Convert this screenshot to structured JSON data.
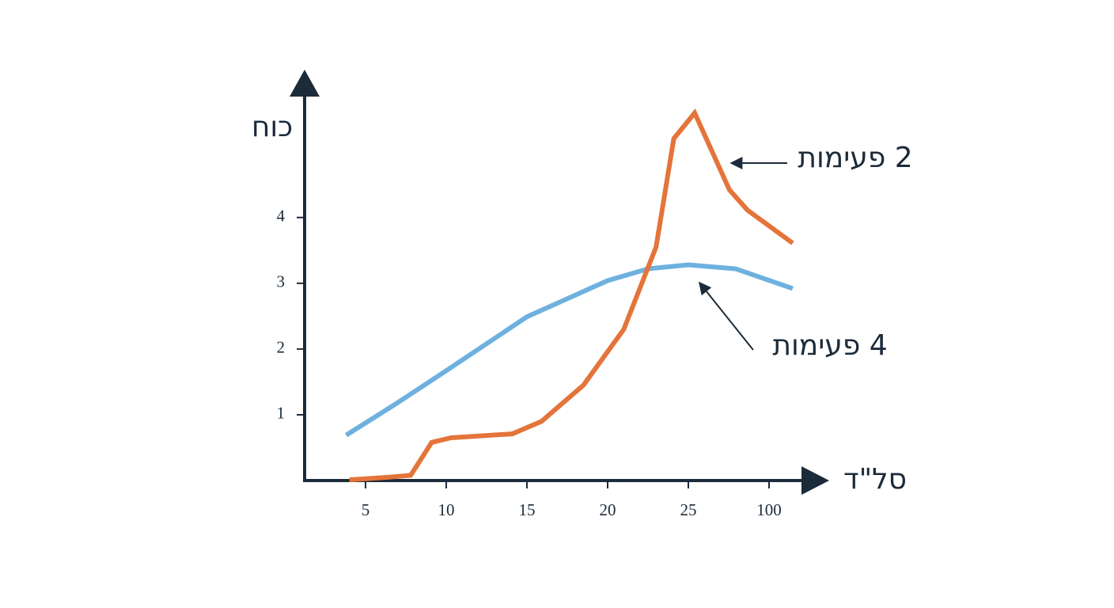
{
  "chart_data": {
    "type": "line",
    "x_label": "סל\"ד",
    "y_label": "כוח",
    "series": [
      {
        "name": "4 פעימות",
        "color": "#6eb1df",
        "x": [
          3.8,
          6.9,
          10,
          15,
          20,
          22.5,
          25,
          69,
          122
        ],
        "values": [
          0.69,
          1.17,
          1.67,
          2.49,
          3.04,
          3.22,
          3.28,
          3.22,
          2.92
        ]
      },
      {
        "name": "2 פעימות",
        "color": "#e4743a",
        "x": [
          4.0,
          6.4,
          7.8,
          9.1,
          10.3,
          14.1,
          15.9,
          18.5,
          21,
          23,
          24.1,
          30.9,
          63.2,
          80.1,
          122
        ],
        "values": [
          0.01,
          0.05,
          0.08,
          0.58,
          0.65,
          0.71,
          0.9,
          1.45,
          2.3,
          3.55,
          5.2,
          5.59,
          4.42,
          4.11,
          3.61
        ]
      }
    ],
    "xlim": [
      1.25,
      130
    ],
    "xticks": [
      5,
      10,
      15,
      20,
      25,
      100
    ],
    "ylim": [
      0,
      6.2
    ],
    "yticks": [
      1,
      2,
      3,
      4
    ],
    "grid": false
  }
}
